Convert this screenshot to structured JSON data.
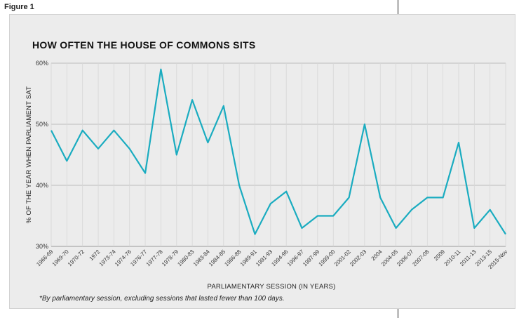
{
  "figure_label": "Figure 1",
  "chart_data": {
    "type": "line",
    "title": "HOW OFTEN THE HOUSE OF COMMONS SITS",
    "xlabel": "PARLIAMENTARY SESSION (IN YEARS)",
    "ylabel": "% OF THE YEAR WHEN PARLIAMENT SAT",
    "footnote": "*By parliamentary session, excluding sessions that lasted fewer than 100 days.",
    "ylim": [
      30,
      60
    ],
    "yticks": [
      "30%",
      "40%",
      "50%",
      "60%"
    ],
    "yticks_values": [
      30,
      40,
      50,
      60
    ],
    "grid": true,
    "line_color": "#1aacc0",
    "categories": [
      "1966-69",
      "1969-70",
      "1970-72",
      "1972",
      "1973-74",
      "1974-76",
      "1976-77",
      "1977-78",
      "1978-79",
      "1980-83",
      "1983-84",
      "1984-85",
      "1986-88",
      "1989-91",
      "1991-93",
      "1994-96",
      "1996-97",
      "1997-99",
      "1999-00",
      "2001-02",
      "2002-03",
      "2004",
      "2004-05",
      "2006-07",
      "2007-08",
      "2009",
      "2010-11",
      "2011-13",
      "2013-15",
      "2015-Nov"
    ],
    "values": [
      49,
      44,
      49,
      46,
      49,
      46,
      42,
      59,
      45,
      54,
      47,
      53,
      40,
      32,
      37,
      39,
      33,
      35,
      35,
      38,
      50,
      38,
      33,
      36,
      38,
      38,
      47,
      33,
      36,
      32
    ]
  }
}
